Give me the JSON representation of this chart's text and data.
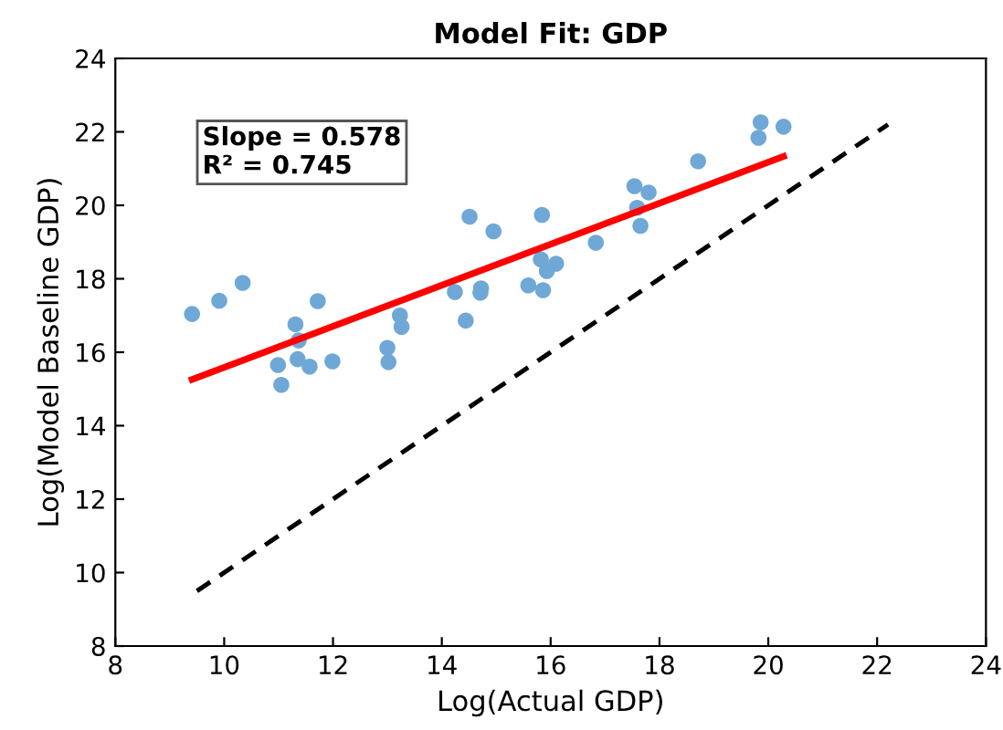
{
  "chart_data": {
    "type": "scatter",
    "title": "Model Fit: GDP",
    "xlabel": "Log(Actual GDP)",
    "ylabel": "Log(Model Baseline GDP)",
    "xlim": [
      8,
      24
    ],
    "ylim": [
      8,
      24
    ],
    "xticks": [
      8,
      10,
      12,
      14,
      16,
      18,
      20,
      22,
      24
    ],
    "yticks": [
      8,
      10,
      12,
      14,
      16,
      18,
      20,
      22,
      24
    ],
    "annotations": [
      "Slope = 0.578",
      "R² = 0.745"
    ],
    "series": [
      {
        "color": "#6fa8d6",
        "marker": "circle",
        "x": [
          9.41,
          9.91,
          10.34,
          11.31,
          11.37,
          11.35,
          10.99,
          11.05,
          11.57,
          11.99,
          11.72,
          13.0,
          13.02,
          13.23,
          13.26,
          14.24,
          14.44,
          14.72,
          14.71,
          14.51,
          14.95,
          15.84,
          15.59,
          15.86,
          15.82,
          15.93,
          16.1,
          16.83,
          17.54,
          17.8,
          17.59,
          17.65,
          18.71,
          19.86,
          19.82,
          20.28
        ],
        "values": [
          17.04,
          17.4,
          17.89,
          16.76,
          16.32,
          15.81,
          15.65,
          15.11,
          15.61,
          15.75,
          17.39,
          16.12,
          15.73,
          17.0,
          16.69,
          17.64,
          16.86,
          17.74,
          17.62,
          19.69,
          19.29,
          19.74,
          17.82,
          17.69,
          18.53,
          18.21,
          18.41,
          18.98,
          20.52,
          20.35,
          19.93,
          19.44,
          21.2,
          22.26,
          21.84,
          22.14
        ]
      },
      {
        "type": "line",
        "color": "#ff0000",
        "line_style": "solid",
        "x": [
          9.41,
          20.28
        ],
        "values": [
          15.26,
          21.33
        ]
      },
      {
        "type": "line",
        "color": "#000000",
        "line_style": "dashed",
        "x": [
          9.5,
          22.2
        ],
        "values": [
          9.5,
          22.2
        ]
      }
    ]
  }
}
